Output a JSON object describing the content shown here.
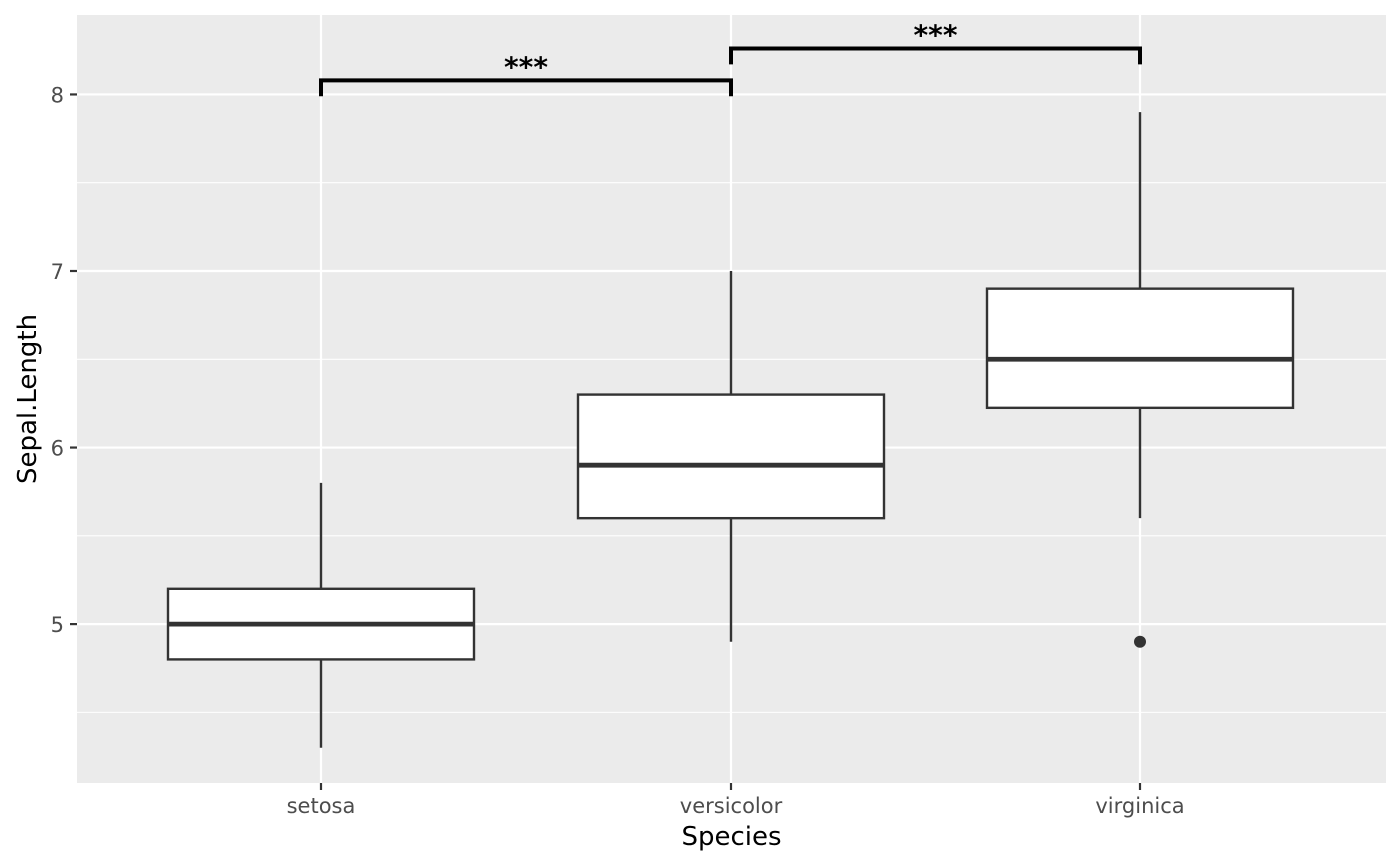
{
  "chart_data": {
    "type": "boxplot",
    "title": "",
    "xlabel": "Species",
    "ylabel": "Sepal.Length",
    "categories": [
      "setosa",
      "versicolor",
      "virginica"
    ],
    "boxes": [
      {
        "category": "setosa",
        "whisker_low": 4.3,
        "q1": 4.8,
        "median": 5.0,
        "q3": 5.2,
        "whisker_high": 5.8,
        "outliers": []
      },
      {
        "category": "versicolor",
        "whisker_low": 4.9,
        "q1": 5.6,
        "median": 5.9,
        "q3": 6.3,
        "whisker_high": 7.0,
        "outliers": []
      },
      {
        "category": "virginica",
        "whisker_low": 5.6,
        "q1": 6.225,
        "median": 6.5,
        "q3": 6.9,
        "whisker_high": 7.9,
        "outliers": [
          4.9
        ]
      }
    ],
    "ylim": [
      4.1,
      8.45
    ],
    "yticks": [
      5,
      6,
      7,
      8
    ],
    "grid": true,
    "comparisons": [
      {
        "group1": "setosa",
        "group2": "versicolor",
        "label": "***",
        "y": 8.08,
        "tip_bottom": 7.99
      },
      {
        "group1": "versicolor",
        "group2": "virginica",
        "label": "***",
        "y": 8.26,
        "tip_bottom": 8.17
      }
    ],
    "colors": {
      "panel_background": "#ebebeb",
      "grid": "#ffffff",
      "box_fill": "#ffffff",
      "box_stroke": "#333333",
      "bracket": "#000000"
    }
  }
}
